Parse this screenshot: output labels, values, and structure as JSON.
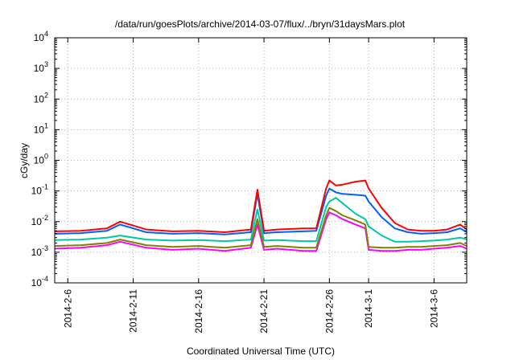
{
  "chart_data": {
    "type": "line",
    "title": "/data/run/goesPlots/archive/2014-03-07/flux/../bryn/31daysMars.plot",
    "xlabel": "Coordinated Universal Time (UTC)",
    "ylabel": "cGy/day",
    "yscale": "log",
    "ylim": [
      0.0001,
      10000
    ],
    "xlim": [
      "2014-02-05",
      "2014-03-08T12:00"
    ],
    "grid": true,
    "y_ticks": [
      {
        "exp": "-4",
        "value": 0.0001
      },
      {
        "exp": "-3",
        "value": 0.001
      },
      {
        "exp": "-2",
        "value": 0.01
      },
      {
        "exp": "-1",
        "value": 0.1
      },
      {
        "exp": "0",
        "value": 1
      },
      {
        "exp": "1",
        "value": 10
      },
      {
        "exp": "2",
        "value": 100
      },
      {
        "exp": "3",
        "value": 1000
      },
      {
        "exp": "4",
        "value": 10000
      }
    ],
    "y_tick_base": "10",
    "x_ticks": [
      {
        "label": "2014-2-6",
        "date": "2014-02-06"
      },
      {
        "label": "2014-2-11",
        "date": "2014-02-11"
      },
      {
        "label": "2014-2-16",
        "date": "2014-02-16"
      },
      {
        "label": "2014-2-21",
        "date": "2014-02-21"
      },
      {
        "label": "2014-2-26",
        "date": "2014-02-26"
      },
      {
        "label": "2014-3-1",
        "date": "2014-03-01"
      },
      {
        "label": "2014-3-6",
        "date": "2014-03-06"
      }
    ],
    "series": [
      {
        "color": "#ff00ff",
        "x": [
          "2014-02-05",
          "2014-02-07",
          "2014-02-09",
          "2014-02-10",
          "2014-02-12",
          "2014-02-14",
          "2014-02-16",
          "2014-02-18",
          "2014-02-20",
          "2014-02-20T12:00",
          "2014-02-21",
          "2014-02-22",
          "2014-02-24",
          "2014-02-25",
          "2014-02-25T18:00",
          "2014-02-26",
          "2014-02-26T12:00",
          "2014-02-27",
          "2014-02-28",
          "2014-02-28T18:00",
          "2014-03-01",
          "2014-03-02",
          "2014-03-03",
          "2014-03-04",
          "2014-03-05",
          "2014-03-06",
          "2014-03-07",
          "2014-03-08",
          "2014-03-08T12:00"
        ],
        "y": [
          0.0013,
          0.0014,
          0.0017,
          0.0022,
          0.0014,
          0.0012,
          0.0013,
          0.0011,
          0.0014,
          0.008,
          0.0012,
          0.0013,
          0.0011,
          0.0011,
          0.012,
          0.02,
          0.016,
          0.012,
          0.008,
          0.006,
          0.0012,
          0.0011,
          0.0011,
          0.0012,
          0.0012,
          0.0013,
          0.0014,
          0.0016,
          0.0013
        ]
      },
      {
        "color": "#808000",
        "x": [
          "2014-02-05",
          "2014-02-07",
          "2014-02-09",
          "2014-02-10",
          "2014-02-12",
          "2014-02-14",
          "2014-02-16",
          "2014-02-18",
          "2014-02-20",
          "2014-02-20T12:00",
          "2014-02-21",
          "2014-02-22",
          "2014-02-24",
          "2014-02-25",
          "2014-02-25T18:00",
          "2014-02-26",
          "2014-02-26T12:00",
          "2014-02-27",
          "2014-02-28",
          "2014-02-28T18:00",
          "2014-03-01",
          "2014-03-02",
          "2014-03-03",
          "2014-03-04",
          "2014-03-05",
          "2014-03-06",
          "2014-03-07",
          "2014-03-08",
          "2014-03-08T12:00"
        ],
        "y": [
          0.0016,
          0.0017,
          0.002,
          0.0026,
          0.0017,
          0.0015,
          0.0016,
          0.0014,
          0.0017,
          0.012,
          0.0015,
          0.0016,
          0.0014,
          0.0014,
          0.016,
          0.028,
          0.022,
          0.016,
          0.011,
          0.008,
          0.0015,
          0.0014,
          0.0014,
          0.0015,
          0.0015,
          0.0016,
          0.0017,
          0.002,
          0.0016
        ]
      },
      {
        "color": "#00c8a0",
        "x": [
          "2014-02-05",
          "2014-02-07",
          "2014-02-09",
          "2014-02-10",
          "2014-02-12",
          "2014-02-14",
          "2014-02-16",
          "2014-02-18",
          "2014-02-20",
          "2014-02-20T12:00",
          "2014-02-21",
          "2014-02-22",
          "2014-02-24",
          "2014-02-25",
          "2014-02-25T18:00",
          "2014-02-26",
          "2014-02-26T12:00",
          "2014-02-27",
          "2014-02-28",
          "2014-02-28T18:00",
          "2014-03-01",
          "2014-03-02",
          "2014-03-03",
          "2014-03-04",
          "2014-03-05",
          "2014-03-06",
          "2014-03-07",
          "2014-03-08",
          "2014-03-08T12:00"
        ],
        "y": [
          0.0025,
          0.0026,
          0.003,
          0.0035,
          0.0026,
          0.0024,
          0.0025,
          0.0023,
          0.0026,
          0.025,
          0.0024,
          0.0025,
          0.0023,
          0.0023,
          0.03,
          0.045,
          0.06,
          0.04,
          0.018,
          0.012,
          0.007,
          0.0035,
          0.0022,
          0.0022,
          0.0023,
          0.0024,
          0.0026,
          0.003,
          0.0026
        ]
      },
      {
        "color": "#0060ff",
        "x": [
          "2014-02-05",
          "2014-02-07",
          "2014-02-09",
          "2014-02-10",
          "2014-02-12",
          "2014-02-14",
          "2014-02-16",
          "2014-02-18",
          "2014-02-20",
          "2014-02-20T12:00",
          "2014-02-21",
          "2014-02-22",
          "2014-02-24",
          "2014-02-25",
          "2014-02-25T18:00",
          "2014-02-26",
          "2014-02-26T12:00",
          "2014-02-27",
          "2014-02-28",
          "2014-02-28T18:00",
          "2014-03-01",
          "2014-03-02",
          "2014-03-03",
          "2014-03-04",
          "2014-03-05",
          "2014-03-06",
          "2014-03-07",
          "2014-03-08",
          "2014-03-08T12:00"
        ],
        "y": [
          0.004,
          0.0042,
          0.005,
          0.008,
          0.0045,
          0.004,
          0.0042,
          0.0038,
          0.0045,
          0.08,
          0.0042,
          0.0045,
          0.0048,
          0.005,
          0.07,
          0.12,
          0.09,
          0.08,
          0.075,
          0.07,
          0.045,
          0.014,
          0.006,
          0.0045,
          0.004,
          0.0042,
          0.0045,
          0.006,
          0.0045
        ]
      },
      {
        "color": "#ff0000",
        "x": [
          "2014-02-05",
          "2014-02-07",
          "2014-02-09",
          "2014-02-10",
          "2014-02-12",
          "2014-02-14",
          "2014-02-16",
          "2014-02-18",
          "2014-02-20",
          "2014-02-20T12:00",
          "2014-02-21",
          "2014-02-22",
          "2014-02-24",
          "2014-02-25",
          "2014-02-25T18:00",
          "2014-02-26",
          "2014-02-26T12:00",
          "2014-02-27",
          "2014-02-28",
          "2014-02-28T18:00",
          "2014-03-01",
          "2014-03-02",
          "2014-03-03",
          "2014-03-04",
          "2014-03-05",
          "2014-03-06",
          "2014-03-07",
          "2014-03-08",
          "2014-03-08T12:00"
        ],
        "y": [
          0.0048,
          0.005,
          0.006,
          0.01,
          0.0055,
          0.0048,
          0.005,
          0.0045,
          0.0055,
          0.11,
          0.005,
          0.0055,
          0.006,
          0.006,
          0.12,
          0.22,
          0.15,
          0.16,
          0.2,
          0.22,
          0.12,
          0.028,
          0.009,
          0.0055,
          0.005,
          0.005,
          0.0055,
          0.008,
          0.0055
        ]
      }
    ]
  }
}
